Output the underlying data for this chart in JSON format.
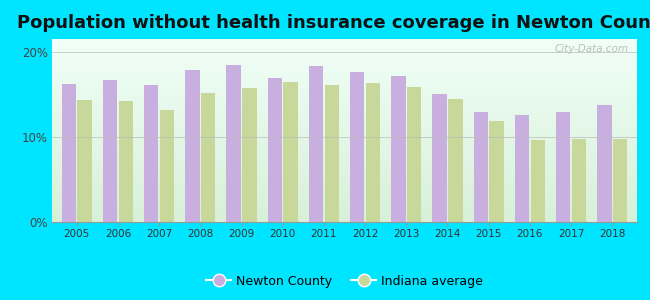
{
  "title": "Population without health insurance coverage in Newton County",
  "years": [
    2005,
    2006,
    2007,
    2008,
    2009,
    2010,
    2011,
    2012,
    2013,
    2014,
    2015,
    2016,
    2017,
    2018
  ],
  "newton_county": [
    16.2,
    16.7,
    16.1,
    17.8,
    18.5,
    16.9,
    18.3,
    17.6,
    17.1,
    15.0,
    12.9,
    12.6,
    12.9,
    13.7
  ],
  "indiana_avg": [
    14.3,
    14.2,
    13.2,
    15.1,
    15.8,
    16.5,
    16.1,
    16.3,
    15.9,
    14.5,
    11.9,
    9.6,
    9.7,
    9.8
  ],
  "bar_color_newton": "#c9aee0",
  "bar_color_indiana": "#c8d89a",
  "background_outer": "#00e5ff",
  "background_top": "#f0fff8",
  "background_bottom": "#d8f0d8",
  "yticks": [
    0,
    10,
    20
  ],
  "ytick_labels": [
    "0%",
    "10%",
    "20%"
  ],
  "ylim": [
    0,
    21.5
  ],
  "legend_newton": "Newton County",
  "legend_indiana": "Indiana average",
  "title_fontsize": 13,
  "watermark": "City-Data.com"
}
